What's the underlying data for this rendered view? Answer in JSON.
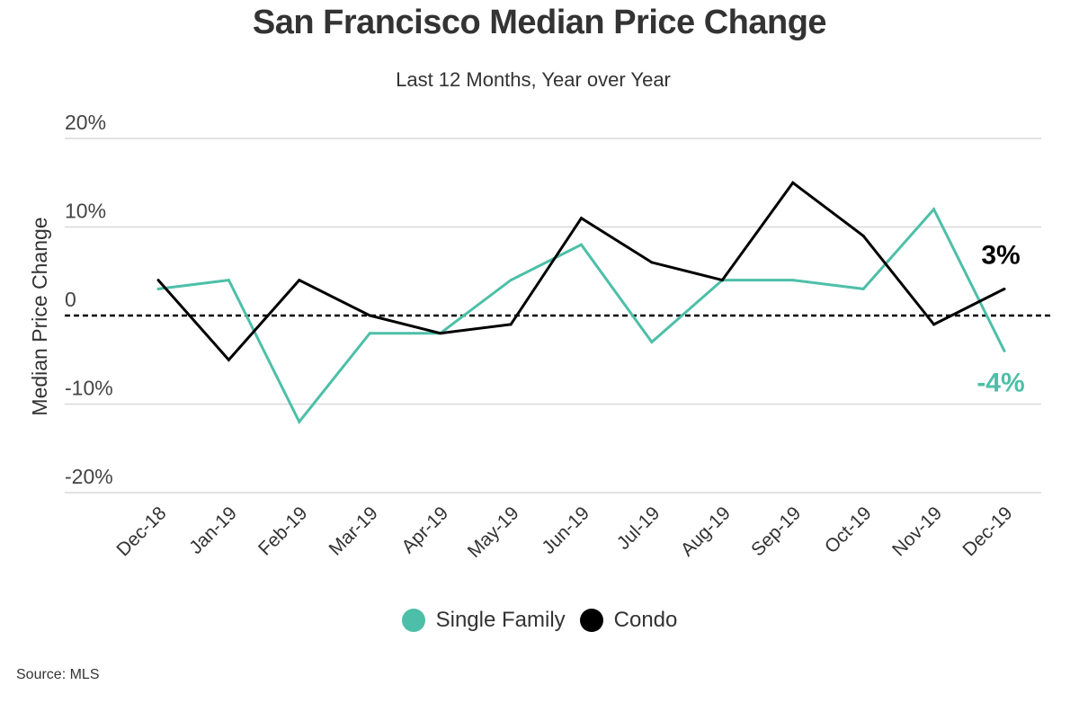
{
  "title": "San Francisco Median Price Change",
  "subtitle": "Last 12 Months, Year over Year",
  "source": "Source: MLS",
  "colors": {
    "single_family": "#4dbfa8",
    "condo": "#000000",
    "grid": "#d9d9d9",
    "zero_line": "#000000"
  },
  "legend": [
    {
      "label": "Single Family",
      "color": "#4dbfa8"
    },
    {
      "label": "Condo",
      "color": "#000000"
    }
  ],
  "chart_data": {
    "type": "line",
    "title": "San Francisco Median Price Change",
    "subtitle": "Last 12 Months, Year over Year",
    "xlabel": "",
    "ylabel": "Median Price Change",
    "categories": [
      "Dec-18",
      "Jan-19",
      "Feb-19",
      "Mar-19",
      "Apr-19",
      "May-19",
      "Jun-19",
      "Jul-19",
      "Aug-19",
      "Sep-19",
      "Oct-19",
      "Nov-19",
      "Dec-19"
    ],
    "y_ticks": [
      20,
      10,
      0,
      -10,
      -20
    ],
    "y_tick_labels": [
      "20%",
      "10%",
      "0",
      "-10%",
      "-20%"
    ],
    "ylim": [
      -20,
      20
    ],
    "grid": true,
    "legend_position": "bottom",
    "series": [
      {
        "name": "Single Family",
        "color": "#4dbfa8",
        "values": [
          3,
          4,
          -12,
          -2,
          -2,
          4,
          8,
          -3,
          4,
          4,
          3,
          12,
          -4
        ],
        "end_label": "-4%"
      },
      {
        "name": "Condo",
        "color": "#000000",
        "values": [
          4,
          -5,
          4,
          0,
          -2,
          -1,
          11,
          6,
          4,
          15,
          9,
          -1,
          3
        ],
        "end_label": "3%"
      }
    ]
  }
}
